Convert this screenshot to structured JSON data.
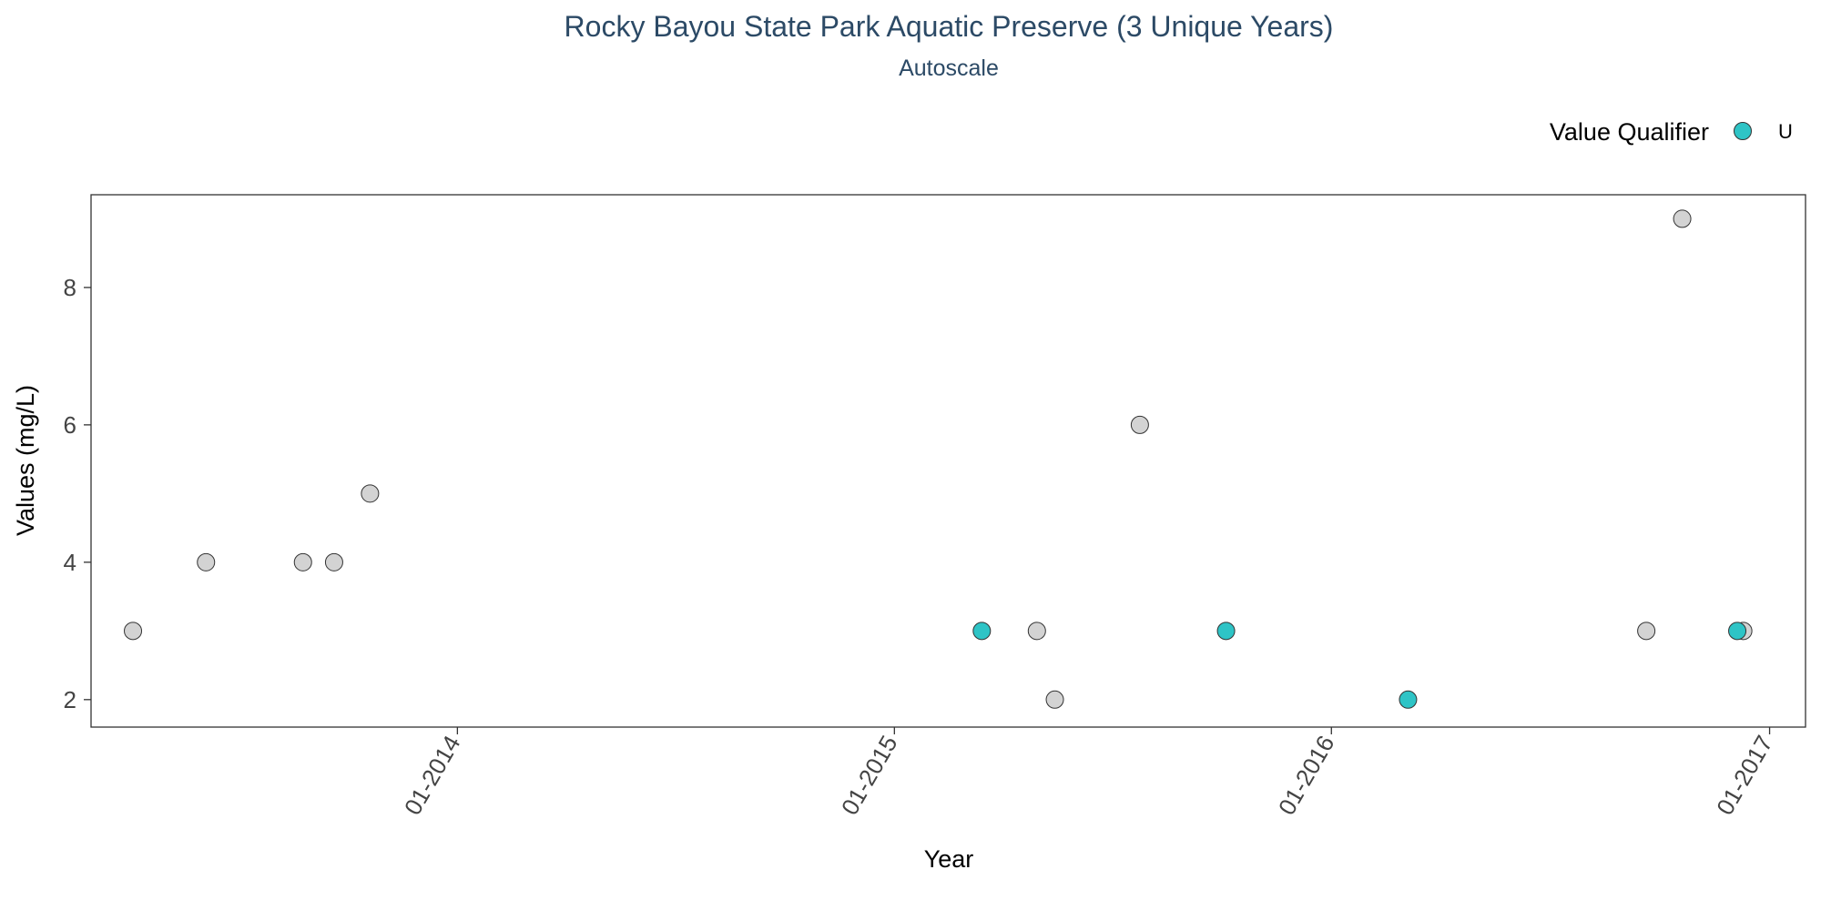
{
  "chart_data": {
    "type": "scatter",
    "title": "Rocky Bayou State Park Aquatic Preserve (3 Unique Years)",
    "subtitle": "Autoscale",
    "xlabel": "Year",
    "ylabel": "Values (mg/L)",
    "x_ticks": [
      "01-2014",
      "01-2015",
      "01-2016",
      "01-2017"
    ],
    "x_range": [
      "2013-03-01",
      "2017-01-31"
    ],
    "y_ticks": [
      2,
      4,
      6,
      8
    ],
    "ylim": [
      1.6,
      9.35
    ],
    "grid": false,
    "legend": {
      "title": "Value Qualifier",
      "position": "top-right",
      "entries": [
        {
          "label": "U",
          "color": "#2ec4c6"
        }
      ]
    },
    "colors": {
      "default": "#d3d3d3",
      "U": "#2ec4c6",
      "outline": "#333333"
    },
    "series": [
      {
        "qualifier": "",
        "points": [
          {
            "x": "2013-04-05",
            "y": 3
          },
          {
            "x": "2013-06-05",
            "y": 4
          },
          {
            "x": "2013-08-25",
            "y": 4
          },
          {
            "x": "2013-09-20",
            "y": 4
          },
          {
            "x": "2013-10-20",
            "y": 5
          },
          {
            "x": "2015-04-30",
            "y": 3
          },
          {
            "x": "2015-05-15",
            "y": 2
          },
          {
            "x": "2015-07-25",
            "y": 6
          },
          {
            "x": "2016-09-20",
            "y": 3
          },
          {
            "x": "2016-10-20",
            "y": 9
          },
          {
            "x": "2016-12-10",
            "y": 3
          }
        ]
      },
      {
        "qualifier": "U",
        "points": [
          {
            "x": "2015-03-15",
            "y": 3
          },
          {
            "x": "2015-10-05",
            "y": 3
          },
          {
            "x": "2016-03-05",
            "y": 2
          },
          {
            "x": "2016-12-05",
            "y": 3
          }
        ]
      }
    ]
  }
}
